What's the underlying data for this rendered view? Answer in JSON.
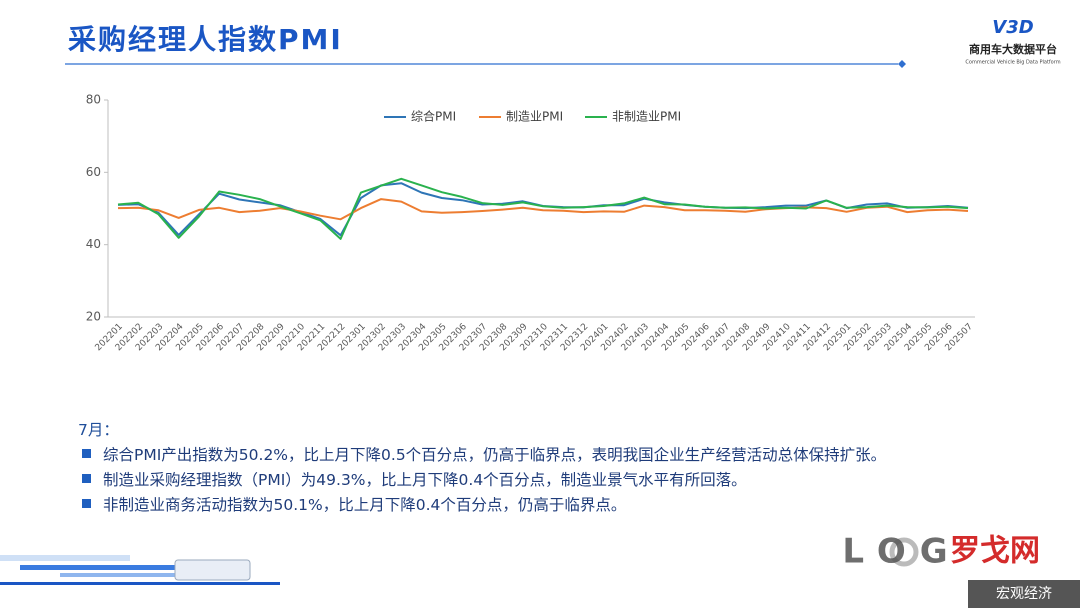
{
  "header": {
    "title": "采购经理人指数PMI",
    "logo_mark": "V3D",
    "logo_text": "商用车大数据平台",
    "logo_sub": "Commercial Vehicle Big Data Platform"
  },
  "chart_data": {
    "type": "line",
    "categories": [
      "202201",
      "202202",
      "202203",
      "202204",
      "202205",
      "202206",
      "202207",
      "202208",
      "202209",
      "202210",
      "202211",
      "202212",
      "202301",
      "202302",
      "202303",
      "202304",
      "202305",
      "202306",
      "202307",
      "202308",
      "202309",
      "202310",
      "202311",
      "202312",
      "202401",
      "202402",
      "202403",
      "202404",
      "202405",
      "202406",
      "202407",
      "202408",
      "202409",
      "202410",
      "202411",
      "202412",
      "202501",
      "202502",
      "202503",
      "202504",
      "202505",
      "202506",
      "202507"
    ],
    "series": [
      {
        "name": "综合PMI",
        "color": "#2e75b6",
        "values": [
          51.0,
          51.2,
          48.8,
          42.7,
          48.4,
          54.1,
          52.5,
          51.7,
          50.9,
          49.0,
          47.1,
          42.6,
          52.9,
          56.4,
          57.0,
          54.4,
          52.9,
          52.3,
          51.1,
          51.3,
          52.0,
          50.7,
          50.4,
          50.3,
          50.9,
          50.9,
          52.7,
          51.7,
          51.0,
          50.5,
          50.2,
          50.1,
          50.4,
          50.8,
          50.8,
          52.2,
          50.1,
          51.1,
          51.4,
          50.2,
          50.4,
          50.7,
          50.2
        ]
      },
      {
        "name": "制造业PMI",
        "color": "#ed7d31",
        "values": [
          50.1,
          50.2,
          49.5,
          47.4,
          49.6,
          50.2,
          49.0,
          49.4,
          50.1,
          49.2,
          48.0,
          47.0,
          50.1,
          52.6,
          51.9,
          49.2,
          48.8,
          49.0,
          49.3,
          49.7,
          50.2,
          49.5,
          49.4,
          49.0,
          49.2,
          49.1,
          50.8,
          50.4,
          49.5,
          49.5,
          49.4,
          49.1,
          49.8,
          50.1,
          50.3,
          50.1,
          49.1,
          50.2,
          50.5,
          49.0,
          49.5,
          49.7,
          49.3
        ]
      },
      {
        "name": "非制造业PMI",
        "color": "#2ab24e",
        "values": [
          51.1,
          51.6,
          48.4,
          41.9,
          47.8,
          54.7,
          53.8,
          52.6,
          50.6,
          48.7,
          46.7,
          41.6,
          54.4,
          56.3,
          58.2,
          56.4,
          54.5,
          53.2,
          51.5,
          51.0,
          51.7,
          50.6,
          50.2,
          50.4,
          50.7,
          51.4,
          53.0,
          51.2,
          51.1,
          50.5,
          50.2,
          50.3,
          50.0,
          50.2,
          50.0,
          52.2,
          50.2,
          50.4,
          50.8,
          50.4,
          50.3,
          50.5,
          50.1
        ]
      }
    ],
    "ylim": [
      20,
      80
    ],
    "yticks": [
      20,
      40,
      60,
      80
    ],
    "grid": false,
    "legend": "top"
  },
  "notes": {
    "heading": "7月：",
    "items": [
      "综合PMI产出指数为50.2%，比上月下降0.5个百分点，仍高于临界点，表明我国企业生产经营活动总体保持扩张。",
      "制造业采购经理指数（PMI）为49.3%，比上月下降0.4个百分点，制造业景气水平有所回落。",
      "非制造业商务活动指数为50.1%，比上月下降0.4个百分点，仍高于临界点。"
    ]
  },
  "footer": {
    "brand_mark": "LOG",
    "brand": "罗戈网",
    "tag": "宏观经济"
  }
}
